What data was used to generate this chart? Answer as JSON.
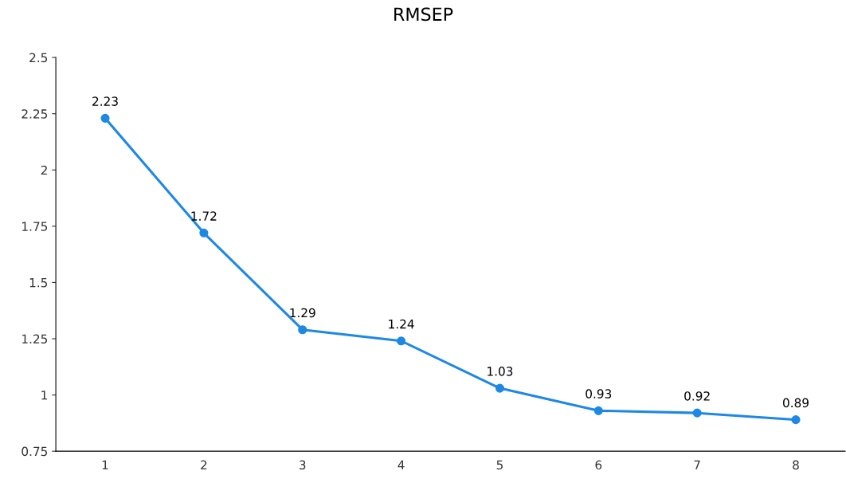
{
  "chart_data": {
    "type": "line",
    "title": "RMSEP",
    "categories": [
      "1",
      "2",
      "3",
      "4",
      "5",
      "6",
      "7",
      "8"
    ],
    "series": [
      {
        "color": "#1e88e5",
        "values": [
          2.23,
          1.72,
          1.29,
          1.24,
          1.03,
          0.93,
          0.92,
          0.89
        ]
      }
    ],
    "ylim": [
      0.75,
      2.5
    ],
    "yticks": [
      0.75,
      1,
      1.25,
      1.5,
      1.75,
      2,
      2.25,
      2.5
    ],
    "data_labels": true,
    "marker": "circle",
    "line_style": "solid",
    "grid": false,
    "legend": false
  }
}
